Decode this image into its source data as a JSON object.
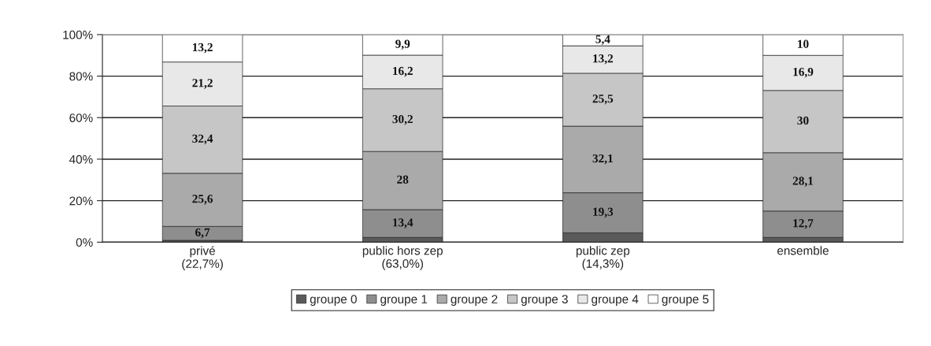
{
  "chart_data": {
    "type": "bar",
    "stacked": true,
    "categories": [
      "privé\n(22,7%)",
      "public hors zep\n(63,0%)",
      "public zep\n(14,3%)",
      "ensemble"
    ],
    "series": [
      {
        "name": "groupe 0",
        "color": "#5a5a5a",
        "values": [
          0.9,
          2.3,
          4.5,
          2.3
        ],
        "value_labels": [
          null,
          null,
          null,
          null
        ]
      },
      {
        "name": "groupe 1",
        "color": "#8e8e8e",
        "values": [
          6.7,
          13.4,
          19.3,
          12.7
        ],
        "value_labels": [
          "6,7",
          "13,4",
          "19,3",
          "12,7"
        ]
      },
      {
        "name": "groupe 2",
        "color": "#aaaaaa",
        "values": [
          25.6,
          28,
          32.1,
          28.1
        ],
        "value_labels": [
          "25,6",
          "28",
          "32,1",
          "28,1"
        ]
      },
      {
        "name": "groupe 3",
        "color": "#c6c6c6",
        "values": [
          32.4,
          30.2,
          25.5,
          30
        ],
        "value_labels": [
          "32,4",
          "30,2",
          "25,5",
          "30"
        ]
      },
      {
        "name": "groupe 4",
        "color": "#e8e8e8",
        "values": [
          21.2,
          16.2,
          13.2,
          16.9
        ],
        "value_labels": [
          "21,2",
          "16,2",
          "13,2",
          "16,9"
        ]
      },
      {
        "name": "groupe 5",
        "color": "#ffffff",
        "values": [
          13.2,
          9.9,
          5.4,
          10
        ],
        "value_labels": [
          "13,2",
          "9,9",
          "5,4",
          "10"
        ]
      }
    ],
    "ylim": [
      0,
      100
    ],
    "yticks": [
      {
        "value": 0,
        "label": "0%"
      },
      {
        "value": 20,
        "label": "20%"
      },
      {
        "value": 40,
        "label": "40%"
      },
      {
        "value": 60,
        "label": "60%"
      },
      {
        "value": 80,
        "label": "80%"
      },
      {
        "value": 100,
        "label": "100%"
      }
    ],
    "grid": "y",
    "legend": "bottom"
  }
}
